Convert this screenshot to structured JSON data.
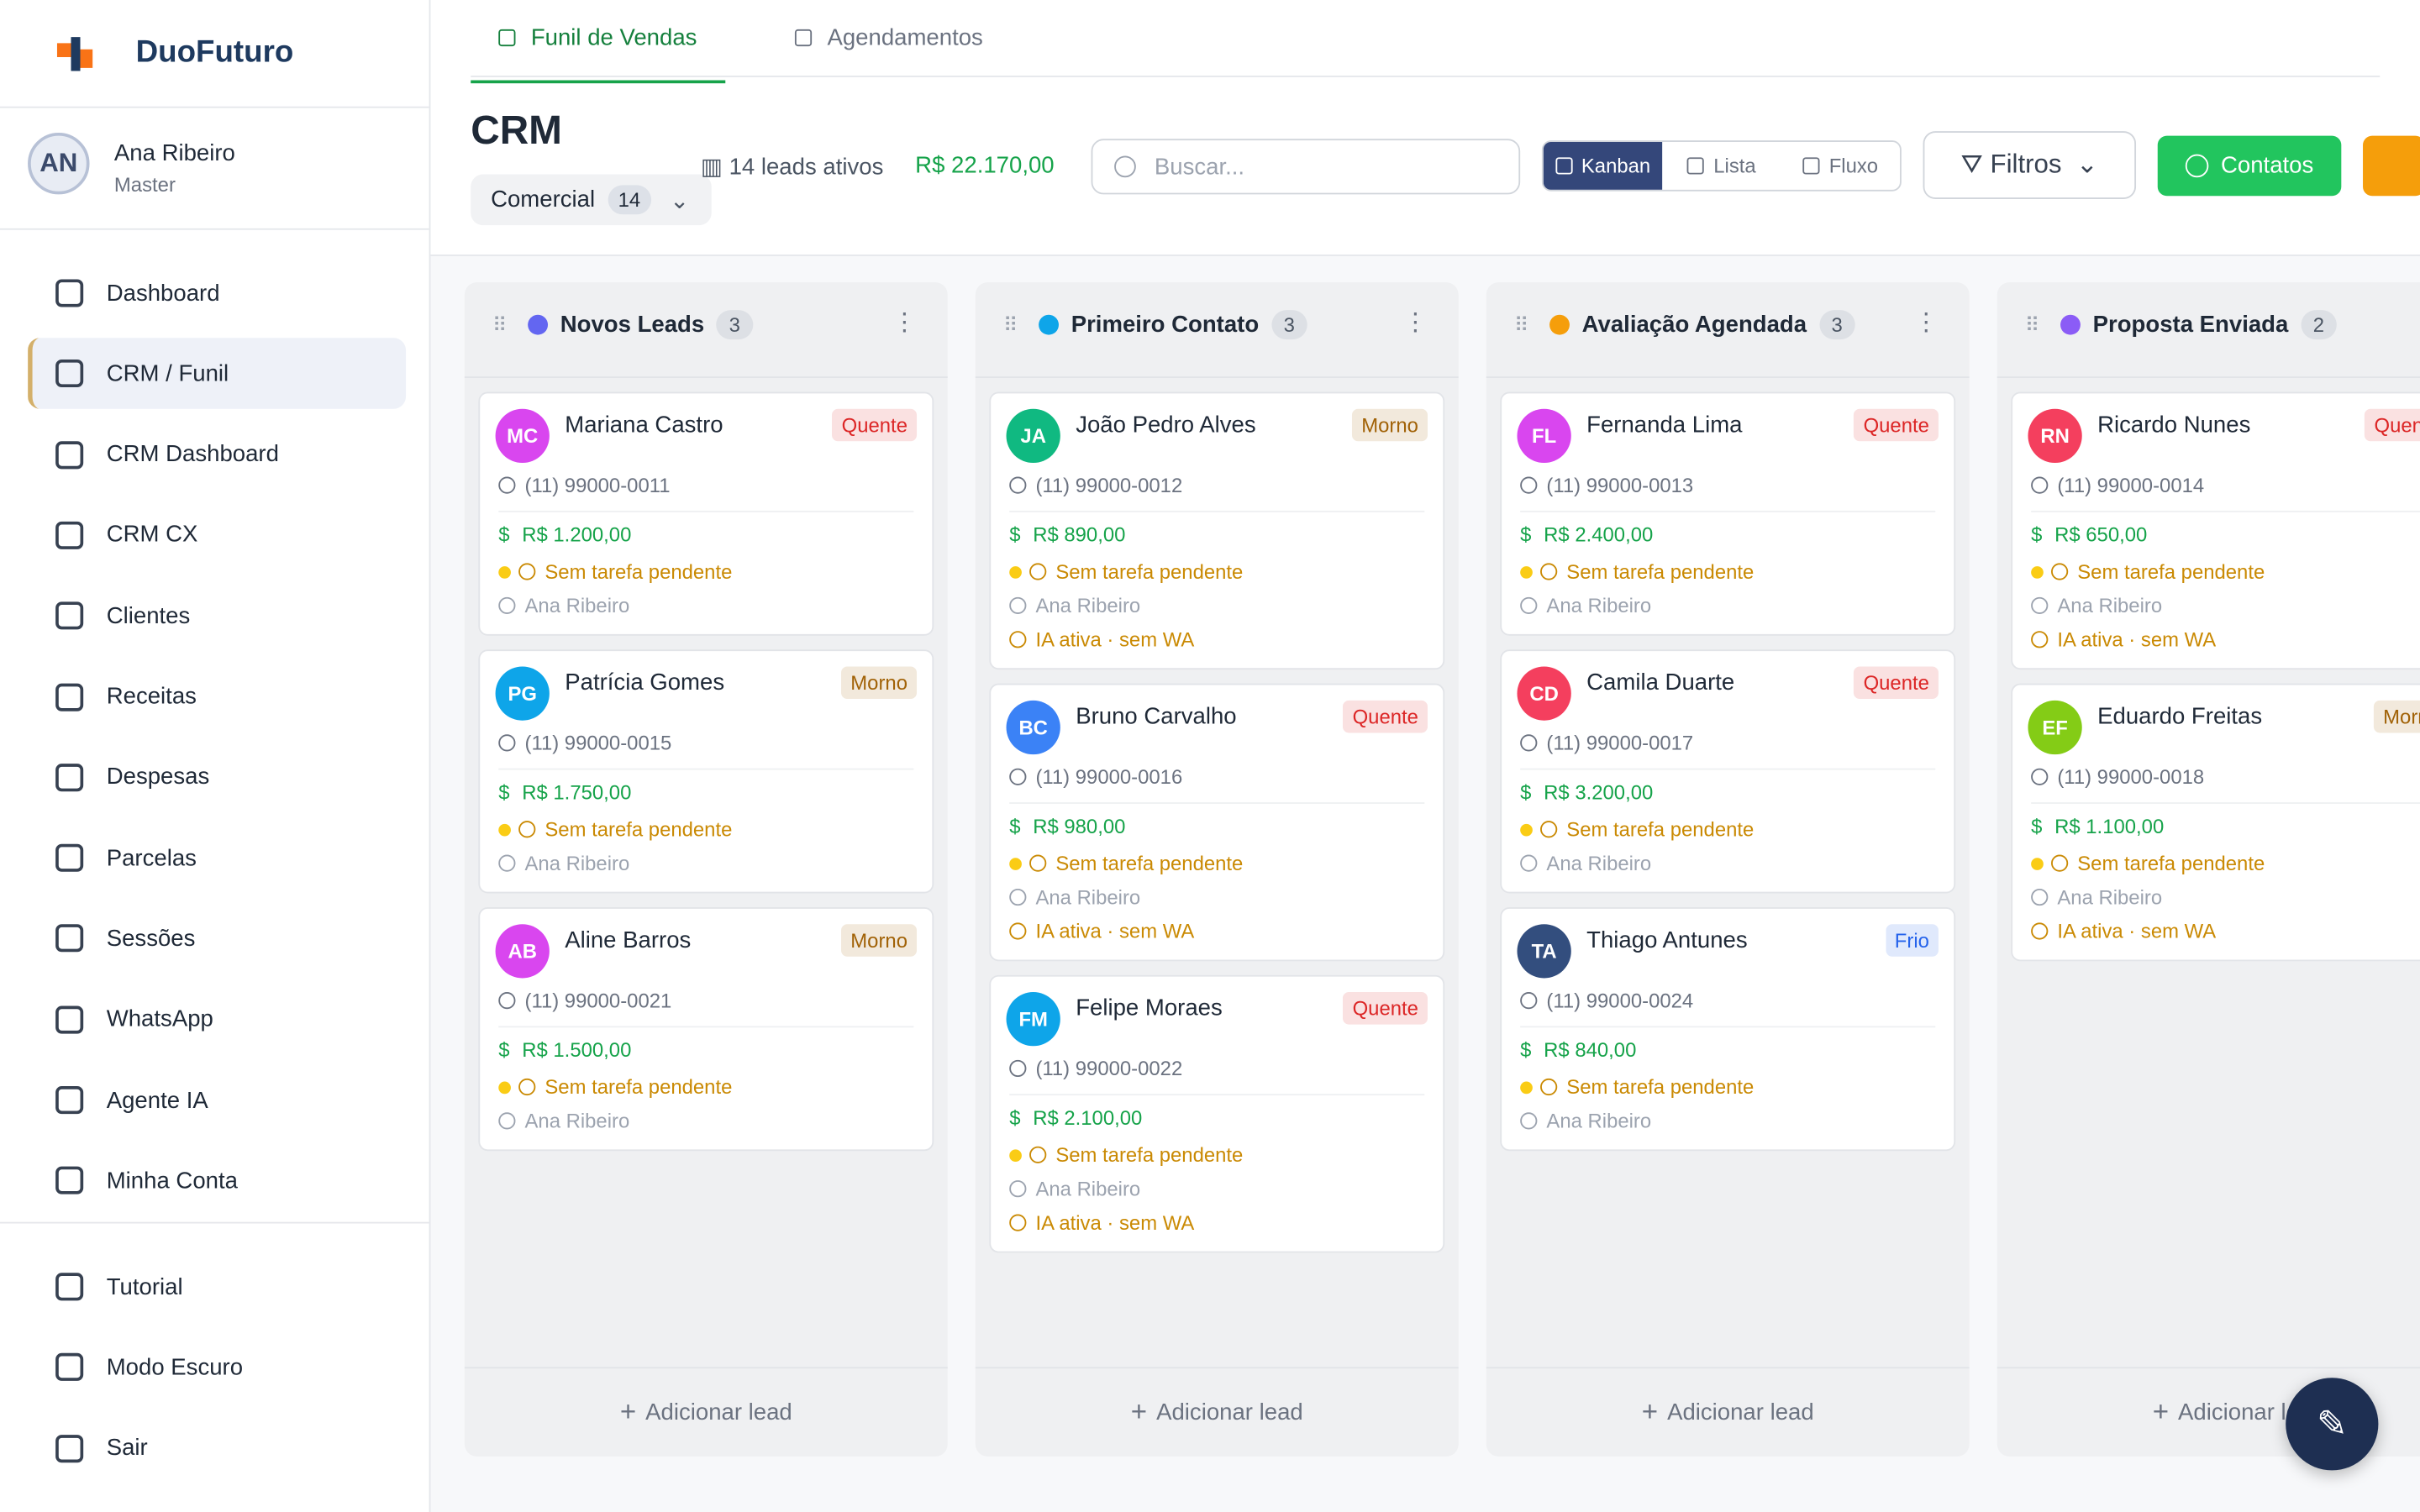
{
  "brand": "DuoFuturo",
  "user": {
    "initials": "AN",
    "name": "Ana Ribeiro",
    "role": "Master"
  },
  "nav": [
    "Dashboard",
    "CRM / Funil",
    "CRM Dashboard",
    "CRM CX",
    "Clientes",
    "Receitas",
    "Despesas",
    "Parcelas",
    "Sessões",
    "WhatsApp",
    "Agente IA",
    "Minha Conta"
  ],
  "nav_active": 1,
  "bottom_nav": [
    "Tutorial",
    "Modo Escuro",
    "Sair"
  ],
  "tabs": [
    "Funil de Vendas",
    "Agendamentos"
  ],
  "header": {
    "title": "CRM",
    "pipeline": "Comercial",
    "pipeline_count": 14,
    "leads": "14 leads ativos",
    "total": "R$ 22.170,00",
    "search_placeholder": "Buscar...",
    "views": [
      "Kanban",
      "Lista",
      "Fluxo"
    ],
    "filters": "Filtros",
    "contacts": "Contatos"
  },
  "add_lead": "Adicionar lead",
  "columns": [
    {
      "name": "Novos Leads",
      "count": 3,
      "color": "#6366f1",
      "cards": [
        {
          "initials": "MC",
          "name": "Mariana Castro",
          "temp": "Quente",
          "temp_color": "#dc2626",
          "avatar_color": "#d946ef",
          "phone": "(11) 99000-0011",
          "value": "R$ 1.200,00",
          "task": "Sem tarefa pendente",
          "owner": "Ana Ribeiro"
        },
        {
          "initials": "PG",
          "name": "Patrícia Gomes",
          "temp": "Morno",
          "temp_color": "#a16207",
          "avatar_color": "#0ea5e9",
          "phone": "(11) 99000-0015",
          "value": "R$ 1.750,00",
          "task": "Sem tarefa pendente",
          "owner": "Ana Ribeiro"
        },
        {
          "initials": "AB",
          "name": "Aline Barros",
          "temp": "Morno",
          "temp_color": "#a16207",
          "avatar_color": "#d946ef",
          "phone": "(11) 99000-0021",
          "value": "R$ 1.500,00",
          "task": "Sem tarefa pendente",
          "owner": "Ana Ribeiro"
        }
      ]
    },
    {
      "name": "Primeiro Contato",
      "count": 3,
      "color": "#0ea5e9",
      "cards": [
        {
          "initials": "JA",
          "name": "João Pedro Alves",
          "temp": "Morno",
          "temp_color": "#a16207",
          "avatar_color": "#10b981",
          "phone": "(11) 99000-0012",
          "value": "R$ 890,00",
          "task": "Sem tarefa pendente",
          "owner": "Ana Ribeiro",
          "ia": "IA ativa · sem WA"
        },
        {
          "initials": "BC",
          "name": "Bruno Carvalho",
          "temp": "Quente",
          "temp_color": "#dc2626",
          "avatar_color": "#3b82f6",
          "phone": "(11) 99000-0016",
          "value": "R$ 980,00",
          "task": "Sem tarefa pendente",
          "owner": "Ana Ribeiro",
          "ia": "IA ativa · sem WA"
        },
        {
          "initials": "FM",
          "name": "Felipe Moraes",
          "temp": "Quente",
          "temp_color": "#dc2626",
          "avatar_color": "#0ea5e9",
          "phone": "(11) 99000-0022",
          "value": "R$ 2.100,00",
          "task": "Sem tarefa pendente",
          "owner": "Ana Ribeiro",
          "ia": "IA ativa · sem WA"
        }
      ]
    },
    {
      "name": "Avaliação Agendada",
      "count": 3,
      "color": "#f59e0b",
      "cards": [
        {
          "initials": "FL",
          "name": "Fernanda Lima",
          "temp": "Quente",
          "temp_color": "#dc2626",
          "avatar_color": "#d946ef",
          "phone": "(11) 99000-0013",
          "value": "R$ 2.400,00",
          "task": "Sem tarefa pendente",
          "owner": "Ana Ribeiro"
        },
        {
          "initials": "CD",
          "name": "Camila Duarte",
          "temp": "Quente",
          "temp_color": "#dc2626",
          "avatar_color": "#f43f5e",
          "phone": "(11) 99000-0017",
          "value": "R$ 3.200,00",
          "task": "Sem tarefa pendente",
          "owner": "Ana Ribeiro"
        },
        {
          "initials": "TA",
          "name": "Thiago Antunes",
          "temp": "Frio",
          "temp_color": "#2563eb",
          "avatar_color": "#334e7e",
          "phone": "(11) 99000-0024",
          "value": "R$ 840,00",
          "task": "Sem tarefa pendente",
          "owner": "Ana Ribeiro"
        }
      ]
    },
    {
      "name": "Proposta Enviada",
      "count": 2,
      "color": "#8b5cf6",
      "cards": [
        {
          "initials": "RN",
          "name": "Ricardo Nunes",
          "temp": "Quente",
          "temp_color": "#dc2626",
          "avatar_color": "#f43f5e",
          "phone": "(11) 99000-0014",
          "value": "R$ 650,00",
          "task": "Sem tarefa pendente",
          "owner": "Ana Ribeiro",
          "ia": "IA ativa · sem WA"
        },
        {
          "initials": "EF",
          "name": "Eduardo Freitas",
          "temp": "Morno",
          "temp_color": "#a16207",
          "avatar_color": "#84cc16",
          "phone": "(11) 99000-0018",
          "value": "R$ 1.100,00",
          "task": "Sem tarefa pendente",
          "owner": "Ana Ribeiro",
          "ia": "IA ativa · sem WA"
        }
      ]
    }
  ]
}
